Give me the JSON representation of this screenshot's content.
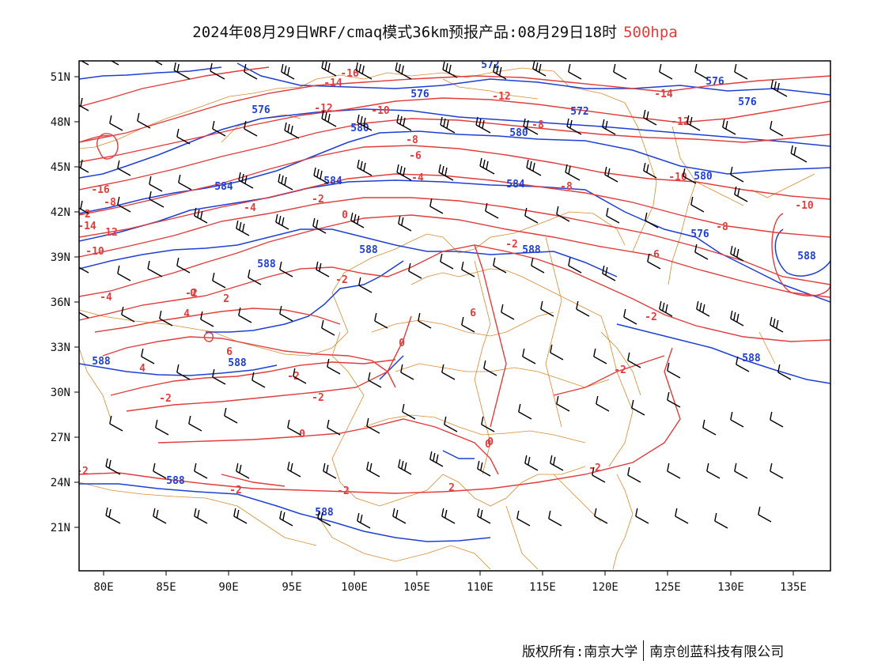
{
  "title": {
    "main": "2024年08月29日WRF/cmaq模式36km预报产品:08月29日18时",
    "level": "500hpa"
  },
  "copyright": {
    "owner_label": "版权所有:南京大学",
    "company": "南京创蓝科技有限公司"
  },
  "colors": {
    "height_contour": "#1f3fd4",
    "temperature_contour": "#e23c3c",
    "boundary": "#d98a2f",
    "wind_barb": "#000000"
  },
  "map": {
    "lon_range": [
      78,
      138
    ],
    "lat_range": [
      18,
      52
    ],
    "y_ticks": [
      "51N",
      "48N",
      "45N",
      "42N",
      "39N",
      "36N",
      "33N",
      "30N",
      "27N",
      "24N",
      "21N"
    ],
    "x_ticks": [
      "80E",
      "85E",
      "90E",
      "95E",
      "100E",
      "105E",
      "110E",
      "115E",
      "120E",
      "125E",
      "130E",
      "135E"
    ],
    "height_labels": [
      "572",
      "588",
      "576",
      "576",
      "580",
      "588",
      "572",
      "576",
      "576",
      "580",
      "584",
      "584",
      "584",
      "580",
      "576",
      "588",
      "588",
      "588",
      "588",
      "588",
      "588",
      "588"
    ],
    "temperature_labels": [
      "-16",
      "-14",
      "-12",
      "-10",
      "-12",
      "-14",
      "-12",
      "-8",
      "-10",
      "-16",
      "-8",
      "-14",
      "12",
      "-10",
      "-8",
      "-6",
      "-4",
      "-8",
      "-4",
      "-10",
      "-2",
      "-8",
      "-6",
      "0",
      "-4",
      "-2",
      "-2",
      "0",
      "2",
      "4",
      "6",
      "6",
      "0",
      "-2",
      "4",
      "-2",
      "-2",
      "-2",
      "0",
      "0",
      "-2",
      "2",
      "-2",
      "-2",
      "-2",
      "-2",
      "-2",
      "-2",
      "0"
    ]
  }
}
